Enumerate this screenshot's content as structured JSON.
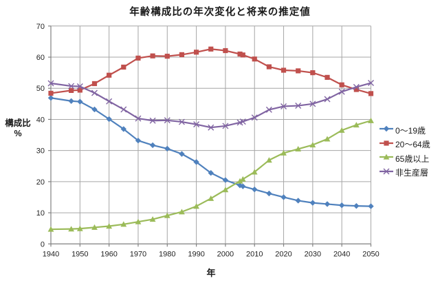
{
  "window": {
    "background": "#FFFFFF"
  },
  "chart_data": {
    "type": "line",
    "title": "年齢構成比の年次変化と将来の推定値",
    "xlabel": "年",
    "ylabel_lines": [
      "構成比",
      "%"
    ],
    "xlim": [
      1940,
      2050
    ],
    "ylim": [
      0,
      70
    ],
    "x_ticks": [
      1940,
      1950,
      1960,
      1970,
      1980,
      1990,
      2000,
      2010,
      2020,
      2030,
      2040,
      2050
    ],
    "y_ticks": [
      0,
      10,
      20,
      30,
      40,
      50,
      60,
      70
    ],
    "grid": true,
    "legend_position": "right",
    "x": [
      1940,
      1947,
      1950,
      1955,
      1960,
      1965,
      1970,
      1975,
      1980,
      1985,
      1990,
      1995,
      2000,
      2005,
      2006,
      2010,
      2015,
      2020,
      2025,
      2030,
      2035,
      2040,
      2045,
      2050
    ],
    "series": [
      {
        "name": "0〜19歳",
        "color": "#4F81BD",
        "marker": "diamond",
        "values": [
          46.9,
          45.9,
          45.7,
          43.2,
          40.1,
          36.9,
          33.2,
          31.7,
          30.6,
          28.9,
          26.3,
          22.8,
          20.5,
          18.8,
          18.5,
          17.5,
          16.2,
          15.0,
          13.9,
          13.2,
          12.8,
          12.4,
          12.2,
          12.1
        ]
      },
      {
        "name": "20〜64歳",
        "color": "#C0504D",
        "marker": "square",
        "values": [
          48.4,
          49.3,
          49.4,
          51.5,
          54.2,
          56.8,
          59.7,
          60.4,
          60.3,
          60.8,
          61.6,
          62.6,
          62.1,
          61.0,
          60.7,
          59.4,
          56.9,
          55.8,
          55.6,
          55.0,
          53.5,
          51.1,
          49.6,
          48.3
        ]
      },
      {
        "name": "65歳以上",
        "color": "#9BBB59",
        "marker": "triangle",
        "values": [
          4.7,
          4.8,
          4.9,
          5.3,
          5.7,
          6.3,
          7.1,
          7.9,
          9.1,
          10.3,
          12.1,
          14.6,
          17.4,
          20.2,
          20.8,
          23.1,
          26.9,
          29.2,
          30.5,
          31.8,
          33.7,
          36.5,
          38.2,
          39.6
        ]
      },
      {
        "name": "非生産層",
        "color": "#8064A2",
        "marker": "x",
        "values": [
          51.6,
          50.7,
          50.6,
          48.5,
          45.8,
          43.2,
          40.3,
          39.6,
          39.7,
          39.2,
          38.4,
          37.4,
          37.9,
          39.0,
          39.3,
          40.6,
          43.1,
          44.2,
          44.4,
          45.0,
          46.5,
          48.9,
          50.4,
          51.7
        ]
      }
    ]
  },
  "colors": {
    "grid": "#A6A6A6",
    "axis": "#808080",
    "tick_text": "#1F1F1F"
  }
}
